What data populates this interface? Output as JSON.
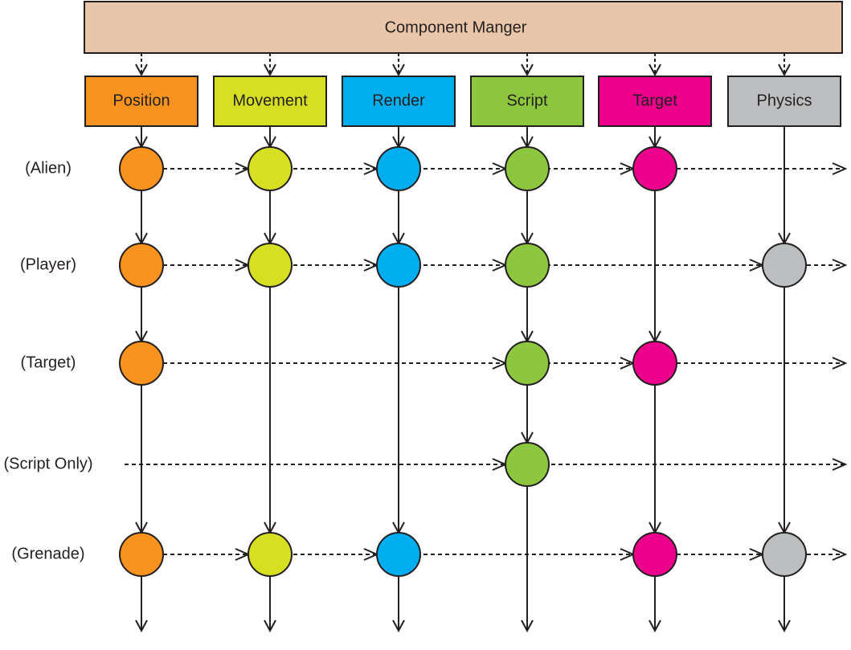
{
  "header": {
    "title": "Component Manger"
  },
  "components": [
    {
      "label": "Position",
      "color": "#f7931e"
    },
    {
      "label": "Movement",
      "color": "#d7df23"
    },
    {
      "label": "Render",
      "color": "#00aeef"
    },
    {
      "label": "Script",
      "color": "#8dc63f"
    },
    {
      "label": "Target",
      "color": "#ec008c"
    },
    {
      "label": "Physics",
      "color": "#bcbec0"
    }
  ],
  "entities": [
    {
      "label": "(Alien)"
    },
    {
      "label": "(Player)"
    },
    {
      "label": "(Target)"
    },
    {
      "label": "(Script Only)"
    },
    {
      "label": "(Grenade)"
    }
  ]
}
